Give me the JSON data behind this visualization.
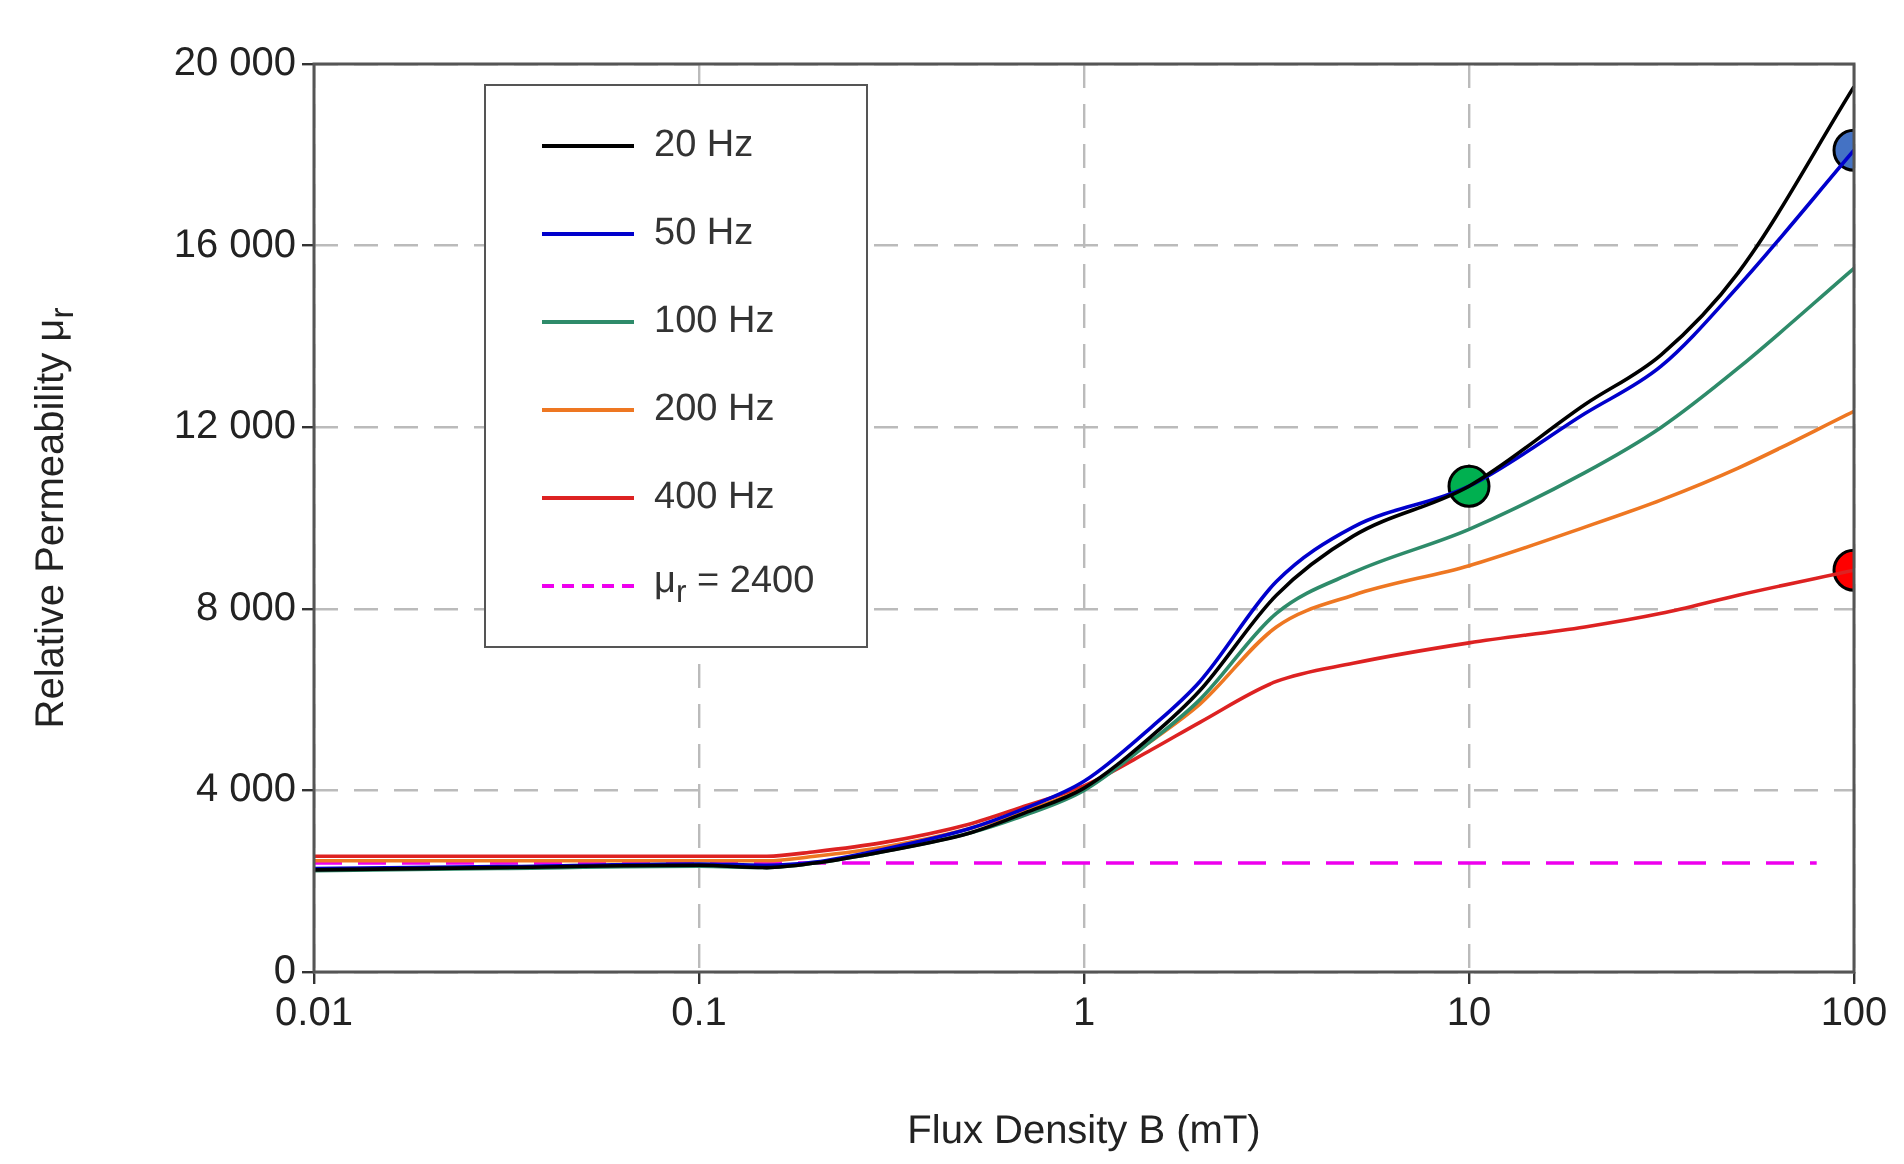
{
  "chart_data": {
    "type": "line",
    "xlabel": "Flux Density B (mT)",
    "ylabel": "Relative Permeability μ$_{r}$",
    "log": "x",
    "xlim": [
      0.01,
      100
    ],
    "xticks": [
      0.01,
      0.1,
      1,
      10,
      100
    ],
    "ylim": [
      0,
      20000
    ],
    "yticks": [
      {
        "value": 0,
        "label": "0"
      },
      {
        "value": 4000,
        "label": "4 000"
      },
      {
        "value": 8000,
        "label": "8 000"
      },
      {
        "value": 12000,
        "label": "12 000"
      },
      {
        "value": 16000,
        "label": "16 000"
      },
      {
        "value": 20000,
        "label": "20 000"
      }
    ],
    "grid": true,
    "legend": "top left",
    "marker": "none",
    "x": [
      0.01,
      0.03,
      0.1,
      0.15,
      0.2,
      0.3,
      0.5,
      0.7,
      1,
      1.5,
      2,
      3.16,
      5,
      10,
      20,
      31.6,
      50,
      100
    ],
    "series": [
      {
        "name": "20 Hz",
        "color": "#000000",
        "values": [
          2250,
          2300,
          2350,
          2300,
          2400,
          2650,
          3050,
          3500,
          4050,
          5200,
          6200,
          8300,
          9600,
          10700,
          12500,
          13600,
          15400,
          19500
        ]
      },
      {
        "name": "50 Hz",
        "color": "#0000cc",
        "values": [
          2280,
          2320,
          2380,
          2350,
          2420,
          2700,
          3150,
          3600,
          4200,
          5400,
          6400,
          8600,
          9800,
          10700,
          12300,
          13350,
          15100,
          18100
        ]
      },
      {
        "name": "100 Hz",
        "color": "#2e8b6a",
        "values": [
          2230,
          2280,
          2330,
          2300,
          2400,
          2650,
          3050,
          3450,
          4000,
          5100,
          6000,
          7900,
          8800,
          9750,
          11000,
          12000,
          13300,
          15500
        ]
      },
      {
        "name": "200 Hz",
        "color": "#ee7722",
        "values": [
          2450,
          2450,
          2450,
          2450,
          2550,
          2750,
          3150,
          3550,
          4050,
          5100,
          5900,
          7600,
          8300,
          8950,
          9800,
          10400,
          11100,
          12350
        ]
      },
      {
        "name": "400 Hz",
        "color": "#dd2222",
        "values": [
          2550,
          2550,
          2550,
          2550,
          2650,
          2850,
          3250,
          3650,
          4100,
          4900,
          5500,
          6400,
          6800,
          7250,
          7600,
          7900,
          8300,
          8850
        ]
      },
      {
        "name": "μ$_{r}$ = 2400",
        "color": "#ee00ee",
        "line_style": "dashed",
        "x": [
          0.01,
          80
        ],
        "values": [
          2400,
          2400
        ]
      },
      {
        "type": "scatter",
        "marker": "circle",
        "color": "#00b050",
        "x": [
          10
        ],
        "values": [
          10700
        ]
      },
      {
        "type": "scatter",
        "marker": "circle",
        "color": "#4472c4",
        "x": [
          100
        ],
        "values": [
          18100
        ]
      },
      {
        "type": "scatter",
        "marker": "circle",
        "color": "#ff0000",
        "x": [
          100
        ],
        "values": [
          8850
        ]
      }
    ]
  }
}
